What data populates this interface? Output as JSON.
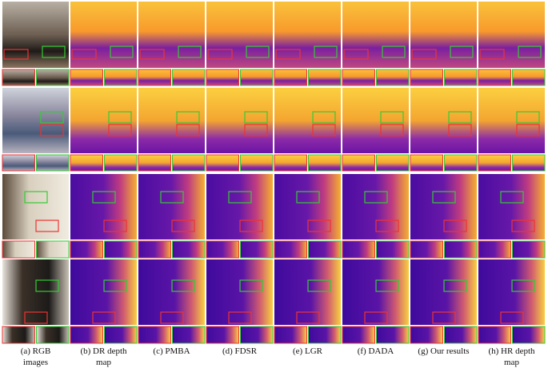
{
  "captions": [
    [
      "(a) RGB",
      "images"
    ],
    [
      "(b) DR depth",
      "map"
    ],
    [
      "(c) PMBA"
    ],
    [
      "(d) FDSR"
    ],
    [
      "(e) LGR"
    ],
    [
      "(f) DADA"
    ],
    [
      "(g) Our results"
    ],
    [
      "(h) HR depth",
      "map"
    ]
  ]
}
